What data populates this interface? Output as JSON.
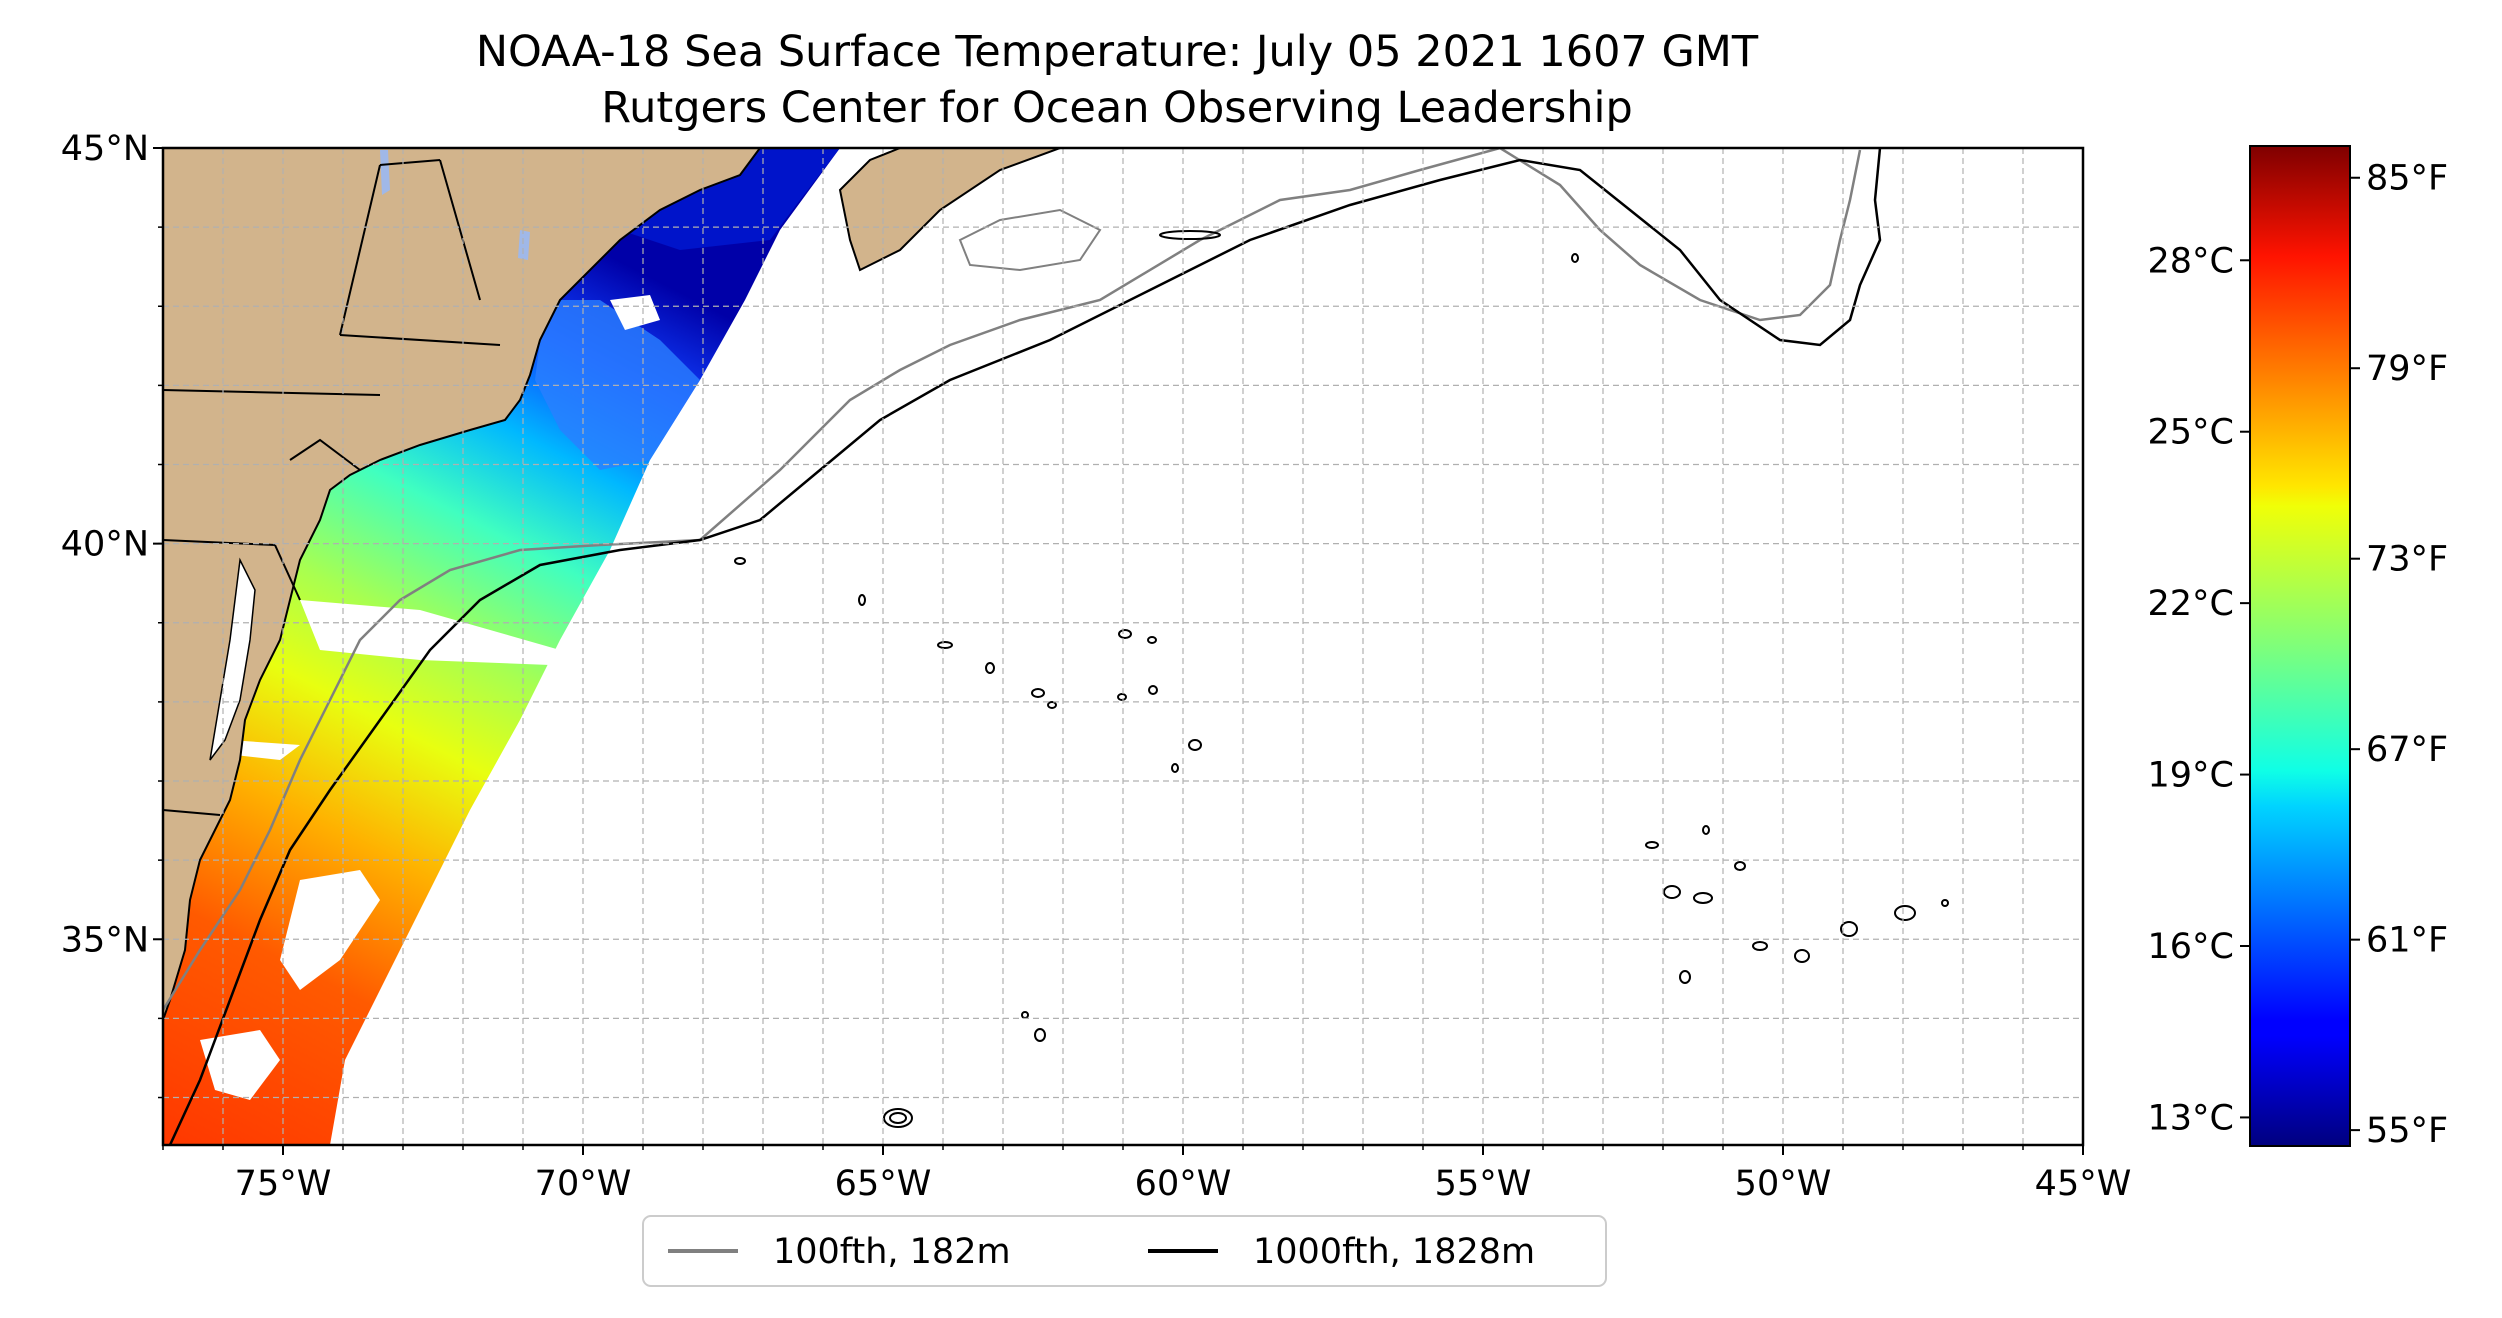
{
  "title": {
    "line1": "NOAA-18 Sea Surface Temperature: July 05 2021 1607 GMT",
    "line2": "Rutgers Center for Ocean Observing Leadership"
  },
  "map": {
    "lon_range": [
      -77,
      -45
    ],
    "lat_range": [
      32.4,
      45
    ],
    "lat_ticks": [
      {
        "value": 45,
        "label": "45°N"
      },
      {
        "value": 40,
        "label": "40°N"
      },
      {
        "value": 35,
        "label": "35°N"
      }
    ],
    "lon_ticks": [
      {
        "value": -75,
        "label": "75°W"
      },
      {
        "value": -70,
        "label": "70°W"
      },
      {
        "value": -65,
        "label": "65°W"
      },
      {
        "value": -60,
        "label": "60°W"
      },
      {
        "value": -55,
        "label": "55°W"
      },
      {
        "value": -50,
        "label": "50°W"
      },
      {
        "value": -45,
        "label": "45°W"
      }
    ],
    "grid": true,
    "land_color": "#d2b48c",
    "contour_100_color": "#808080",
    "contour_1000_color": "#000000"
  },
  "colorbar": {
    "range_c": [
      12.5,
      30
    ],
    "celsius_ticks": [
      {
        "value": 13,
        "label": "13°C"
      },
      {
        "value": 16,
        "label": "16°C"
      },
      {
        "value": 19,
        "label": "19°C"
      },
      {
        "value": 22,
        "label": "22°C"
      },
      {
        "value": 25,
        "label": "25°C"
      },
      {
        "value": 28,
        "label": "28°C"
      }
    ],
    "fahrenheit_ticks": [
      {
        "value": 55,
        "label": "55°F"
      },
      {
        "value": 61,
        "label": "61°F"
      },
      {
        "value": 67,
        "label": "67°F"
      },
      {
        "value": 73,
        "label": "73°F"
      },
      {
        "value": 79,
        "label": "79°F"
      },
      {
        "value": 85,
        "label": "85°F"
      }
    ],
    "colormap": "jet"
  },
  "legend": {
    "placement": "bottom-center",
    "items": [
      {
        "label": "100fth, 182m",
        "color": "#808080"
      },
      {
        "label": "1000fth, 1828m",
        "color": "#000000"
      }
    ]
  }
}
